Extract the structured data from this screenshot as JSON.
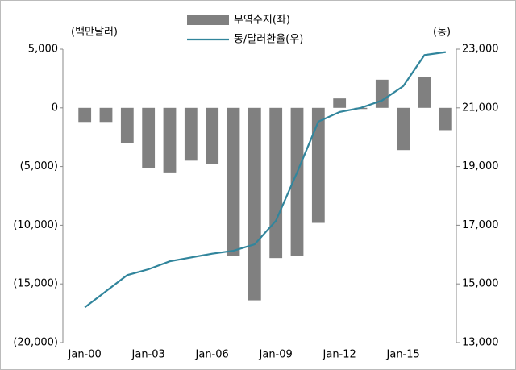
{
  "chart_data": {
    "type": "bar",
    "y_unit_label": "(백만달러)",
    "y2_unit_label": "(동)",
    "categories": [
      "Jan-00",
      null,
      null,
      "Jan-03",
      null,
      null,
      "Jan-06",
      null,
      null,
      "Jan-09",
      null,
      null,
      "Jan-12",
      null,
      null,
      "Jan-15",
      null,
      null
    ],
    "series": [
      {
        "name": "무역수지(좌)",
        "type": "bar",
        "color": "#808080",
        "axis": "y",
        "values": [
          -1200,
          -1200,
          -3000,
          -5100,
          -5500,
          -4500,
          -4800,
          -12600,
          -16400,
          -12800,
          -12600,
          -9800,
          800,
          -100,
          2400,
          -3600,
          2600,
          -1900
        ]
      },
      {
        "name": "동/달러환율(우)",
        "type": "line",
        "color": "#31859c",
        "axis": "y2",
        "values": [
          14200,
          14750,
          15300,
          15500,
          15770,
          15900,
          16030,
          16130,
          16350,
          17150,
          18800,
          20530,
          20860,
          21000,
          21250,
          21740,
          22800,
          22900
        ]
      }
    ],
    "ylim": [
      -20000,
      5000
    ],
    "yticks": [
      {
        "value": 5000,
        "label": "5,000"
      },
      0,
      {
        "value": -5000,
        "label": "(5,000)"
      },
      {
        "value": -10000,
        "label": "(10,000)"
      },
      {
        "value": -15000,
        "label": "(15,000)"
      },
      {
        "value": -20000,
        "label": "(20,000)"
      }
    ],
    "y2lim": [
      13000,
      23000
    ],
    "y2ticks": [
      {
        "value": 23000,
        "label": "23,000"
      },
      {
        "value": 21000,
        "label": "21,000"
      },
      {
        "value": 19000,
        "label": "19,000"
      },
      {
        "value": 17000,
        "label": "17,000"
      },
      {
        "value": 15000,
        "label": "15,000"
      },
      {
        "value": 13000,
        "label": "13,000"
      }
    ],
    "legend": "top"
  }
}
